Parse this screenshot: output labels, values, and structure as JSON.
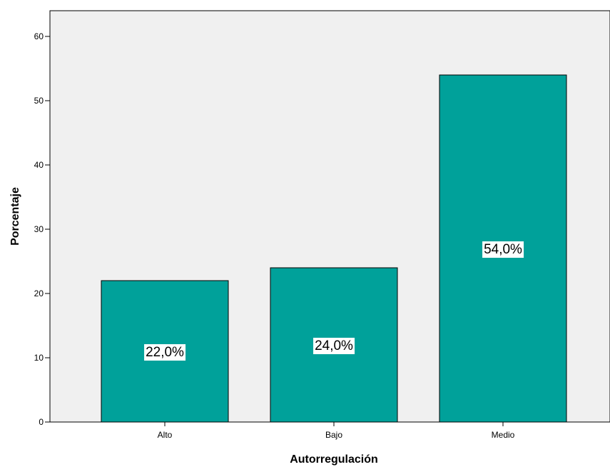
{
  "chart_data": {
    "type": "bar",
    "title": "",
    "xlabel": "Autorregulación",
    "ylabel": "Porcentaje",
    "categories": [
      "Alto",
      "Bajo",
      "Medio"
    ],
    "values": [
      22.0,
      24.0,
      54.0
    ],
    "data_labels": [
      "22,0%",
      "24,0%",
      "54,0%"
    ],
    "ylim": [
      0,
      64
    ],
    "yticks": [
      0,
      10,
      20,
      30,
      40,
      50,
      60
    ],
    "grid": false,
    "legend": "none",
    "colors": {
      "bar": "#00A19A",
      "plot_background": "#F0F0F0",
      "axis": "#000000",
      "label_box": "#FFFFFF"
    }
  }
}
